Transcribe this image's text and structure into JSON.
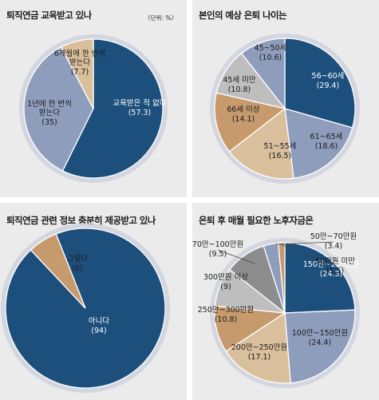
{
  "colors": {
    "navy": "#1c4f7b",
    "periwinkle": "#8f9dbd",
    "sand": "#d9bf9c",
    "tan": "#c79a6d",
    "grey": "#bebebe",
    "darkgrey": "#8d8d8d",
    "ring": "#d3d6df",
    "bg": "#ebebeb"
  },
  "chart_data": [
    {
      "type": "pie",
      "title": "퇴직연금 교육받고 있나",
      "unit": "〈단위: %〉",
      "slices": [
        {
          "label": "교육받은 적 없다",
          "value": 57.3,
          "value_text": "(57.3)",
          "color": "#1c4f7b"
        },
        {
          "label": "1년에 한 번씩\n받는다",
          "value": 35,
          "value_text": "(35)",
          "color": "#8f9dbd"
        },
        {
          "label": "6개월에 한 번씩\n받는다",
          "value": 7.7,
          "value_text": "(7.7)",
          "color": "#d9bf9c"
        }
      ]
    },
    {
      "type": "pie",
      "title": "본인의 예상 은퇴 나이는",
      "slices": [
        {
          "label": "56~60세",
          "value": 29.4,
          "value_text": "(29.4)",
          "color": "#1c4f7b"
        },
        {
          "label": "61~65세",
          "value": 18.6,
          "value_text": "(18.6)",
          "color": "#8f9dbd"
        },
        {
          "label": "51~55세",
          "value": 16.5,
          "value_text": "(16.5)",
          "color": "#d9bf9c"
        },
        {
          "label": "66세 이상",
          "value": 14.1,
          "value_text": "(14.1)",
          "color": "#c79a6d"
        },
        {
          "label": "45세 미만",
          "value": 10.8,
          "value_text": "(10.8)",
          "color": "#bebebe"
        },
        {
          "label": "45~50세",
          "value": 10.6,
          "value_text": "(10.6)",
          "color": "#8f9dbd"
        }
      ]
    },
    {
      "type": "pie",
      "title": "퇴직연금 관련 정보 충분히 제공받고 있나",
      "slices": [
        {
          "label": "아니다",
          "value": 94,
          "value_text": "(94)",
          "color": "#1c4f7b"
        },
        {
          "label": "그렇다",
          "value": 6,
          "value_text": "(6)",
          "color": "#c79a6d"
        }
      ]
    },
    {
      "type": "pie",
      "title": "은퇴 후 매월 필요한 노후자금은",
      "slices": [
        {
          "label": "150만~200만원",
          "value": 24.3,
          "value_text": "(24.3)",
          "color": "#1c4f7b"
        },
        {
          "label": "100만~150만원",
          "value": 24.4,
          "value_text": "(24.4)",
          "color": "#8f9dbd"
        },
        {
          "label": "200만~250만원",
          "value": 17.1,
          "value_text": "(17.1)",
          "color": "#d9bf9c"
        },
        {
          "label": "250만~300만원",
          "value": 10.8,
          "value_text": "(10.8)",
          "color": "#c79a6d"
        },
        {
          "label": "300만원 이상",
          "value": 9,
          "value_text": "(9)",
          "color": "#bebebe"
        },
        {
          "label": "70만~100만원",
          "value": 9.5,
          "value_text": "(9.5)",
          "color": "#8d8d8d"
        },
        {
          "label": "50만~70만원",
          "value": 3.4,
          "value_text": "(3.4)",
          "color": "#8f9dbd"
        },
        {
          "label": "50만원 미만",
          "value": 1.5,
          "value_text": "(1.5)",
          "color": "#c79a6d"
        }
      ]
    }
  ]
}
